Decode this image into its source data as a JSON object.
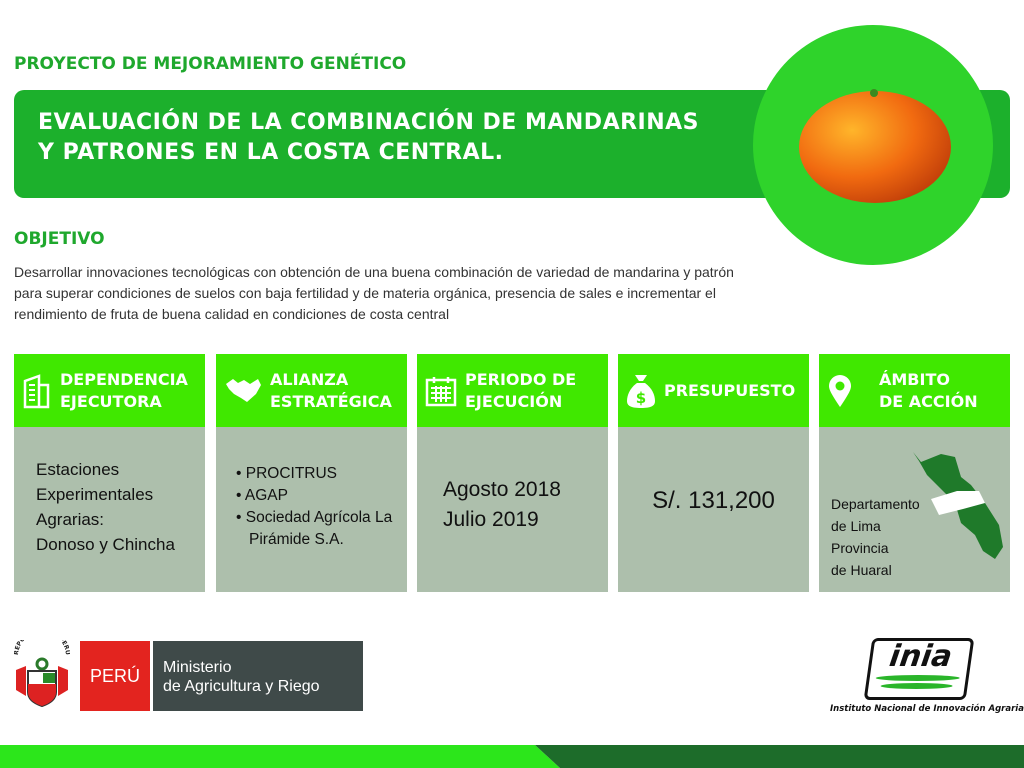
{
  "header": {
    "kicker": "PROYECTO DE MEJORAMIENTO GENÉTICO",
    "title_line1": "EVALUACIÓN DE LA COMBINACIÓN DE MANDARINAS",
    "title_line2": "Y PATRONES EN LA COSTA CENTRAL."
  },
  "objective": {
    "heading": "OBJETIVO",
    "text": "Desarrollar innovaciones tecnológicas con obtención de una buena combinación de variedad de mandarina y patrón para superar condiciones de suelos con baja fertilidad y de materia orgánica, presencia de sales e incrementar el rendimiento de fruta de buena calidad en condiciones de costa central"
  },
  "cards": [
    {
      "title1": "DEPENDENCIA",
      "title2": "EJECUTORA",
      "icon": "building-icon",
      "lines": [
        "Estaciones",
        "Experimentales",
        "Agrarias:",
        "Donoso y Chincha"
      ]
    },
    {
      "title1": "ALIANZA",
      "title2": "ESTRATÉGICA",
      "icon": "handshake-icon",
      "items": [
        "PROCITRUS",
        "AGAP",
        "Sociedad Agrícola La Pirámide S.A."
      ]
    },
    {
      "title1": "PERIODO DE",
      "title2": "EJECUCIÓN",
      "icon": "calendar-icon",
      "lines": [
        "Agosto 2018",
        "Julio 2019"
      ]
    },
    {
      "title1": "PRESUPUESTO",
      "icon": "money-bag-icon",
      "value": "S/. 131,200"
    },
    {
      "title1": "ÁMBITO",
      "title2": "DE ACCIÓN",
      "icon": "location-pin-icon",
      "lines": [
        "Departamento",
        "de Lima",
        "Provincia",
        "de Huaral"
      ]
    }
  ],
  "footer": {
    "peru": "PERÚ",
    "ministry1": "Ministerio",
    "ministry2": "de Agricultura y Riego",
    "inia_logo": "inia",
    "inia_caption": "Instituto Nacional de Innovación Agraria",
    "coat_text": "REPÚBLICA DEL PERÚ"
  },
  "colors": {
    "dark_green": "#1cb02c",
    "bright_green": "#40e800",
    "card_gray": "#adbfac",
    "peru_red": "#e3241f"
  }
}
